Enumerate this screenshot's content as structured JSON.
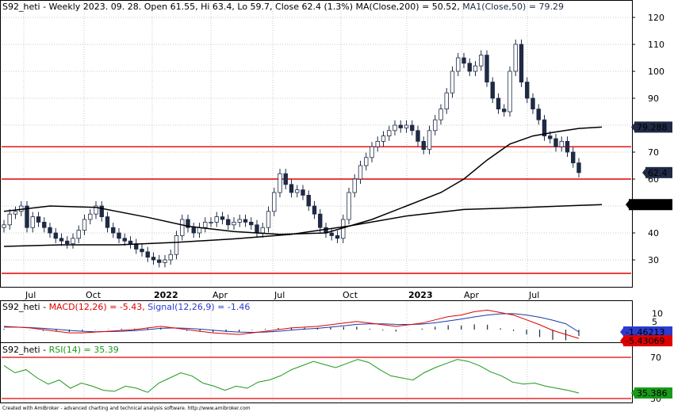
{
  "colors": {
    "price_up": "#ffffff",
    "price_down": "#1f2a44",
    "ma200": "#000000",
    "ma50": "#000000",
    "support": "#e00000",
    "macd": "#e00000",
    "signal": "#1a3aa8",
    "hist": "#1f2a44",
    "rsi": "#1a9a1a",
    "grid": "#c8c8c8",
    "label_ma50": "#1f2a44",
    "label_close": "#1f2a44",
    "label_ma200": "#1f2a44",
    "label_signal": "#2a3cd0",
    "label_macd": "#e00000",
    "label_rsi": "#1a9a1a"
  },
  "price_header": {
    "main": "S92_heti - Weekly 2023. 09. 28. Open 61.55, Hi 63.4, Lo 59.7, Close 62.4 (1.3%) MA(Close,200) = 50.52, ",
    "ma1": "MA1(Close,50) = 79.29"
  },
  "macd_header": {
    "prefix": "S92_heti - ",
    "macd": "MACD(12,26) = -5.43, ",
    "signal": "Signal(12,26,9) = -1.46"
  },
  "rsi_header": {
    "prefix": "S92_heti - ",
    "rsi": "RSI(14) = 35.39"
  },
  "footer": "Created with AmiBroker - advanced charting and technical analysis software. http://www.amibroker.com",
  "x_labels": [
    "Jul",
    "Oct",
    "2022",
    "Apr",
    "Jul",
    "Oct",
    "2023",
    "Apr",
    "Jul"
  ],
  "price_ticks": [
    "120",
    "110",
    "100",
    "90",
    "80",
    "70",
    "60",
    "50",
    "40",
    "30"
  ],
  "macd_ticks": [
    "10",
    "5",
    "0"
  ],
  "rsi_ticks": [
    "70",
    "30"
  ],
  "value_labels": {
    "ma50": "79.288",
    "close": "62.4",
    "ma200": "50.5169",
    "signal": "-1.46213",
    "macd": "-5.43069",
    "rsi": "35.386"
  },
  "chart_data": [
    {
      "type": "candlestick",
      "title": "S92_heti - Weekly",
      "ylim": [
        24,
        122
      ],
      "x_ticks": [
        "Jul",
        "Oct",
        "2022",
        "Apr",
        "Jul",
        "Oct",
        "2023",
        "Apr",
        "Jul"
      ],
      "horizontal_lines": [
        72,
        60,
        25
      ],
      "last_bar": {
        "date": "2023. 09. 28.",
        "open": 61.55,
        "high": 63.4,
        "low": 59.7,
        "close": 62.4,
        "change_pct": 1.3
      },
      "closes": [
        43,
        47,
        48,
        50,
        42,
        46,
        44,
        42,
        40,
        38,
        37,
        36,
        38,
        41,
        45,
        47,
        50,
        46,
        42,
        40,
        38,
        37,
        36,
        34,
        33,
        31,
        30,
        29,
        30,
        32,
        39,
        45,
        42,
        40,
        42,
        44,
        44,
        46,
        45,
        43,
        44,
        45,
        44,
        43,
        40,
        42,
        48,
        55,
        62,
        58,
        55,
        56,
        54,
        50,
        47,
        42,
        40,
        39,
        38,
        45,
        55,
        60,
        65,
        68,
        72,
        74,
        76,
        78,
        80,
        79,
        80,
        78,
        74,
        71,
        78,
        82,
        86,
        92,
        100,
        105,
        103,
        100,
        102,
        106,
        96,
        90,
        86,
        85,
        100,
        110,
        96,
        90,
        86,
        82,
        76,
        75,
        72,
        74,
        70,
        66,
        62.4
      ],
      "ma200": {
        "x": [
          0,
          10,
          20,
          30,
          40,
          50,
          60,
          70,
          80,
          90,
          100,
          104
        ],
        "y": [
          35,
          35.6,
          35.6,
          36.5,
          37.8,
          39.5,
          42.6,
          46.3,
          48.7,
          49.4,
          50.2,
          50.52
        ]
      },
      "ma50": {
        "x": [
          0,
          8,
          16,
          25,
          32,
          40,
          48,
          56,
          64,
          70,
          76,
          80,
          84,
          88,
          92,
          96,
          100,
          104
        ],
        "y": [
          48,
          50,
          49.5,
          45.8,
          42.5,
          40.5,
          39.5,
          40,
          45,
          50,
          55,
          60,
          67,
          73,
          76,
          77.5,
          78.8,
          79.29
        ]
      },
      "value_labels": {
        "ma50": 79.288,
        "close": 62.4,
        "ma200": 50.5169
      }
    },
    {
      "type": "line",
      "title": "MACD(12,26)",
      "ylim": [
        -6,
        14
      ],
      "y_ticks": [
        10,
        5,
        0
      ],
      "series": [
        {
          "name": "MACD(12,26)",
          "last": -5.43069
        },
        {
          "name": "Signal(12,26,9)",
          "last": -1.46213
        }
      ],
      "macd": [
        2,
        1.5,
        1,
        0,
        -1,
        -2,
        -2,
        -1.5,
        -1,
        -0.5,
        0,
        1,
        2,
        1,
        0,
        -1,
        -2,
        -2.5,
        -3,
        -2,
        -1,
        0,
        1,
        1.5,
        2,
        3,
        4,
        5,
        4,
        3,
        2,
        3,
        4,
        6,
        8,
        9,
        11,
        12,
        10.5,
        9,
        6,
        3,
        -0.5,
        -3,
        -5.43
      ],
      "signal": [
        1.5,
        1.5,
        1.2,
        0.8,
        0.2,
        -0.5,
        -1,
        -1.3,
        -1.2,
        -1,
        -0.6,
        0,
        0.8,
        1,
        0.8,
        0.3,
        -0.4,
        -1,
        -1.5,
        -1.7,
        -1.5,
        -1,
        -0.3,
        0.3,
        0.8,
        1.5,
        2.3,
        3.2,
        3.5,
        3.5,
        3.2,
        3.1,
        3.4,
        4.2,
        5.3,
        6.5,
        7.8,
        9,
        9.7,
        9.8,
        9,
        7.6,
        5.8,
        3.6,
        -1.46
      ]
    },
    {
      "type": "line",
      "title": "RSI(14)",
      "ylim": [
        25,
        80
      ],
      "y_ticks": [
        70,
        30
      ],
      "horizontal_lines": [
        70,
        30
      ],
      "series": [
        {
          "name": "RSI(14)",
          "last": 35.386
        }
      ],
      "values": [
        62,
        55,
        58,
        50,
        44,
        48,
        40,
        45,
        42,
        38,
        37,
        42,
        40,
        36,
        45,
        50,
        55,
        52,
        45,
        42,
        38,
        42,
        40,
        46,
        48,
        52,
        58,
        62,
        66,
        63,
        60,
        64,
        68,
        65,
        58,
        52,
        50,
        48,
        55,
        60,
        64,
        68,
        66,
        62,
        56,
        52,
        46,
        44,
        45,
        42,
        40,
        38,
        35.39
      ]
    }
  ]
}
